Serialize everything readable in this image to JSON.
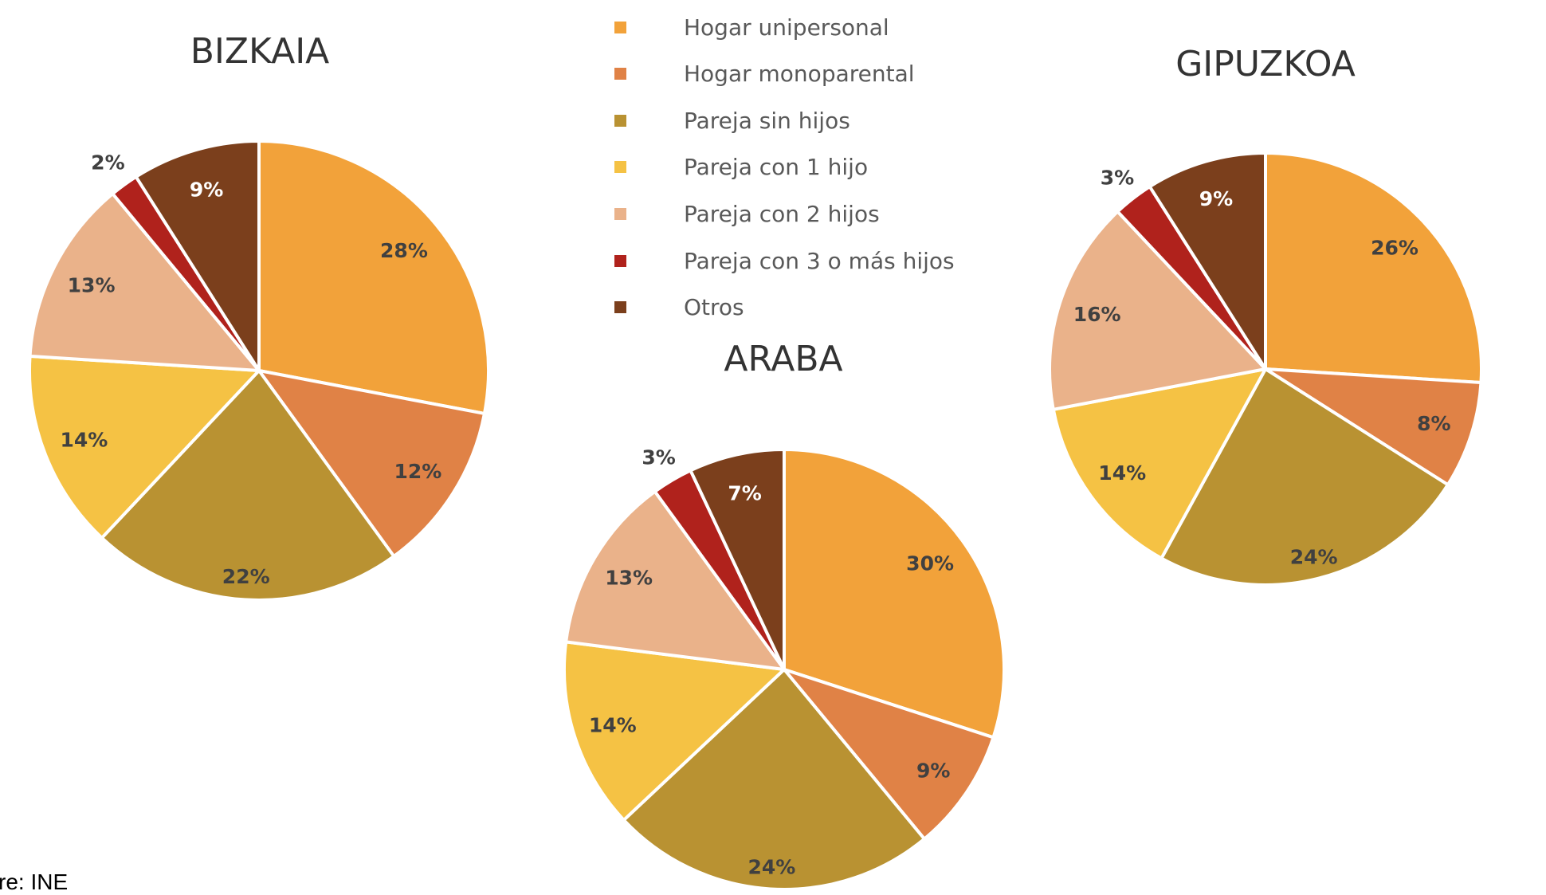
{
  "legend": {
    "items": [
      {
        "label": "Hogar unipersonal",
        "color": "#F2A23A"
      },
      {
        "label": "Hogar monoparental",
        "color": "#E08246"
      },
      {
        "label": "Pareja sin hijos",
        "color": "#B99232"
      },
      {
        "label": "Pareja con 1 hijo",
        "color": "#F5C244"
      },
      {
        "label": "Pareja con 2 hijos",
        "color": "#EAB28A"
      },
      {
        "label": "Pareja con 3 o más hijos",
        "color": "#B0221C"
      },
      {
        "label": "Otros",
        "color": "#7B3F1C"
      }
    ]
  },
  "source_text": "re: INE",
  "chart_data": [
    {
      "type": "pie",
      "title": "BIZKAIA",
      "categories": [
        "Hogar unipersonal",
        "Hogar monoparental",
        "Pareja sin hijos",
        "Pareja con 1 hijo",
        "Pareja con 2 hijos",
        "Pareja con 3 o más hijos",
        "Otros"
      ],
      "values": [
        28,
        12,
        22,
        14,
        13,
        2,
        9
      ],
      "labels": [
        "28%",
        "12%",
        "22%",
        "14%",
        "13%",
        "2%",
        "9%"
      ],
      "start": "top",
      "direction": "clockwise"
    },
    {
      "type": "pie",
      "title": "ARABA",
      "categories": [
        "Hogar unipersonal",
        "Hogar monoparental",
        "Pareja sin hijos",
        "Pareja con 1 hijo",
        "Pareja con 2 hijos",
        "Pareja con 3 o más hijos",
        "Otros"
      ],
      "values": [
        30,
        9,
        24,
        14,
        13,
        3,
        7
      ],
      "labels": [
        "30%",
        "9%",
        "24%",
        "14%",
        "13%",
        "3%",
        "7%"
      ],
      "start": "top",
      "direction": "clockwise"
    },
    {
      "type": "pie",
      "title": "GIPUZKOA",
      "categories": [
        "Hogar unipersonal",
        "Hogar monoparental",
        "Pareja sin hijos",
        "Pareja con 1 hijo",
        "Pareja con 2 hijos",
        "Pareja con 3 o más hijos",
        "Otros"
      ],
      "values": [
        26,
        8,
        24,
        14,
        16,
        3,
        9
      ],
      "labels": [
        "26%",
        "8%",
        "24%",
        "14%",
        "16%",
        "3%",
        "9%"
      ],
      "start": "top",
      "direction": "clockwise"
    }
  ]
}
